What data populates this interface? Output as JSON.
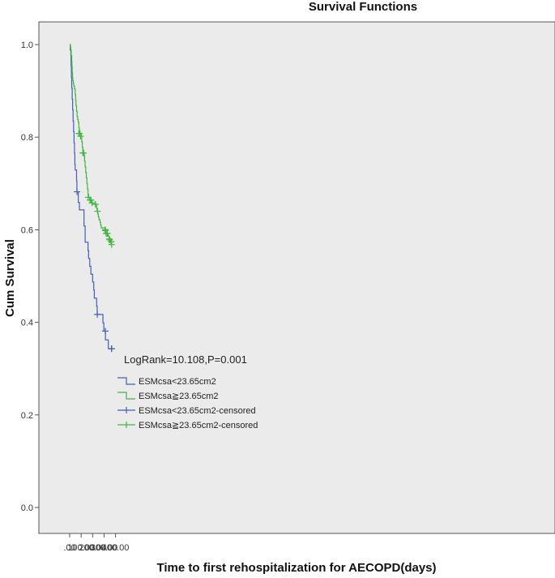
{
  "chart_data": {
    "type": "line",
    "title": "Survival Functions",
    "xlabel": "Time to first rehospitalization for AECOPD(days)",
    "ylabel": "Cum Survival",
    "xlim": [
      -20,
      420
    ],
    "ylim": [
      -0.05,
      1.05
    ],
    "x_ticks": [
      0,
      100,
      200,
      300,
      400
    ],
    "x_tick_labels": [
      ".00",
      "100.00",
      "200.00",
      "300.00",
      "400.00"
    ],
    "y_ticks": [
      0,
      0.2,
      0.4,
      0.6,
      0.8,
      1.0
    ],
    "y_tick_labels": [
      "0.0",
      "0.2",
      "0.4",
      "0.6",
      "0.8",
      "1.0"
    ],
    "grid": false,
    "background": "#ebebeb",
    "annotation": "LogRank=10.108,P=0.001",
    "legend_position": "lower-left",
    "legend": [
      {
        "label": "ESMcsa<23.65cm2",
        "kind": "line",
        "color": "#4060b8"
      },
      {
        "label": "ESMcsa≧23.65cm2",
        "kind": "line",
        "color": "#3cb83c"
      },
      {
        "label": "ESMcsa<23.65cm2-censored",
        "kind": "censor",
        "color": "#4060b8"
      },
      {
        "label": "ESMcsa≧23.65cm2-censored",
        "kind": "censor",
        "color": "#3cb83c"
      }
    ],
    "series": [
      {
        "name": "ESMcsa<23.65cm2",
        "color": "#4060b8",
        "steps": [
          [
            0,
            1.0
          ],
          [
            5,
            0.988
          ],
          [
            10,
            0.976
          ],
          [
            12,
            0.953
          ],
          [
            15,
            0.929
          ],
          [
            18,
            0.906
          ],
          [
            22,
            0.882
          ],
          [
            26,
            0.859
          ],
          [
            30,
            0.835
          ],
          [
            34,
            0.812
          ],
          [
            38,
            0.788
          ],
          [
            42,
            0.765
          ],
          [
            45,
            0.741
          ],
          [
            48,
            0.729
          ],
          [
            60,
            0.706
          ],
          [
            63,
            0.682
          ],
          [
            75,
            0.659
          ],
          [
            85,
            0.643
          ],
          [
            125,
            0.608
          ],
          [
            135,
            0.573
          ],
          [
            160,
            0.555
          ],
          [
            165,
            0.538
          ],
          [
            175,
            0.521
          ],
          [
            185,
            0.504
          ],
          [
            200,
            0.487
          ],
          [
            210,
            0.47
          ],
          [
            215,
            0.452
          ],
          [
            235,
            0.435
          ],
          [
            240,
            0.417
          ],
          [
            290,
            0.399
          ],
          [
            298,
            0.381
          ],
          [
            312,
            0.362
          ],
          [
            337,
            0.343
          ],
          [
            366,
            0.343
          ]
        ],
        "censored": [
          [
            64,
            0.682
          ],
          [
            241,
            0.417
          ],
          [
            311,
            0.381
          ],
          [
            365,
            0.343
          ],
          [
            366,
            0.343
          ]
        ]
      },
      {
        "name": "ESMcsa≧23.65cm2",
        "color": "#3cb83c",
        "steps": [
          [
            0,
            1.0
          ],
          [
            7,
            0.994
          ],
          [
            10,
            0.988
          ],
          [
            13,
            0.976
          ],
          [
            18,
            0.964
          ],
          [
            20,
            0.952
          ],
          [
            22,
            0.94
          ],
          [
            25,
            0.928
          ],
          [
            28,
            0.922
          ],
          [
            32,
            0.916
          ],
          [
            36,
            0.91
          ],
          [
            42,
            0.904
          ],
          [
            48,
            0.892
          ],
          [
            52,
            0.88
          ],
          [
            55,
            0.868
          ],
          [
            60,
            0.856
          ],
          [
            65,
            0.844
          ],
          [
            70,
            0.838
          ],
          [
            75,
            0.832
          ],
          [
            80,
            0.82
          ],
          [
            85,
            0.814
          ],
          [
            90,
            0.808
          ],
          [
            100,
            0.802
          ],
          [
            105,
            0.79
          ],
          [
            110,
            0.778
          ],
          [
            115,
            0.772
          ],
          [
            122,
            0.766
          ],
          [
            126,
            0.76
          ],
          [
            130,
            0.748
          ],
          [
            135,
            0.736
          ],
          [
            140,
            0.724
          ],
          [
            145,
            0.712
          ],
          [
            150,
            0.7
          ],
          [
            155,
            0.688
          ],
          [
            160,
            0.676
          ],
          [
            165,
            0.67
          ],
          [
            175,
            0.664
          ],
          [
            190,
            0.658
          ],
          [
            195,
            0.655
          ],
          [
            230,
            0.652
          ],
          [
            235,
            0.646
          ],
          [
            240,
            0.64
          ],
          [
            245,
            0.634
          ],
          [
            250,
            0.628
          ],
          [
            255,
            0.622
          ],
          [
            265,
            0.616
          ],
          [
            270,
            0.61
          ],
          [
            275,
            0.604
          ],
          [
            310,
            0.598
          ],
          [
            315,
            0.592
          ],
          [
            325,
            0.592
          ],
          [
            335,
            0.586
          ],
          [
            345,
            0.58
          ],
          [
            355,
            0.574
          ],
          [
            360,
            0.568
          ],
          [
            366,
            0.568
          ]
        ],
        "censored": [
          [
            80,
            0.808
          ],
          [
            85,
            0.808
          ],
          [
            95,
            0.802
          ],
          [
            115,
            0.766
          ],
          [
            120,
            0.766
          ],
          [
            162,
            0.67
          ],
          [
            178,
            0.664
          ],
          [
            186,
            0.664
          ],
          [
            195,
            0.658
          ],
          [
            225,
            0.655
          ],
          [
            243,
            0.64
          ],
          [
            310,
            0.6
          ],
          [
            313,
            0.598
          ],
          [
            318,
            0.592
          ],
          [
            328,
            0.592
          ],
          [
            345,
            0.58
          ],
          [
            350,
            0.578
          ],
          [
            362,
            0.574
          ],
          [
            366,
            0.568
          ]
        ]
      }
    ]
  }
}
